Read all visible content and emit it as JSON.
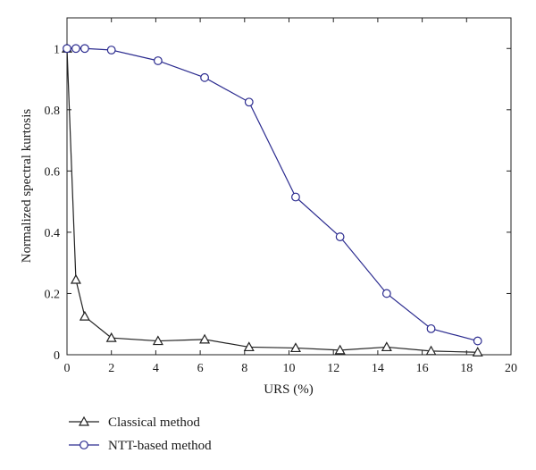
{
  "chart_data": {
    "type": "line",
    "title": "",
    "xlabel": "URS (%)",
    "ylabel": "Normalized spectral kurtosis",
    "xlim": [
      0,
      20
    ],
    "ylim": [
      0,
      1.1
    ],
    "x_ticks": [
      0,
      2,
      4,
      6,
      8,
      10,
      12,
      14,
      16,
      18,
      20
    ],
    "x_tick_labels": [
      "0",
      "2",
      "4",
      "6",
      "8",
      "10",
      "12",
      "14",
      "16",
      "18",
      "20"
    ],
    "y_ticks": [
      0,
      0.2,
      0.4,
      0.6,
      0.8,
      1
    ],
    "y_tick_labels": [
      "0",
      "0.2",
      "0.4",
      "0.6",
      "0.8",
      "1"
    ],
    "grid": false,
    "legend_position": "bottom-left, below plot",
    "series": [
      {
        "name": "Classical method",
        "color": "#222222",
        "marker": "triangle",
        "x": [
          0,
          0.4,
          0.8,
          2,
          4.1,
          6.2,
          8.2,
          10.3,
          12.3,
          14.4,
          16.4,
          18.5
        ],
        "y": [
          1.0,
          0.245,
          0.125,
          0.055,
          0.045,
          0.05,
          0.025,
          0.022,
          0.015,
          0.025,
          0.012,
          0.008
        ]
      },
      {
        "name": "NTT-based method",
        "color": "#2b2b8f",
        "marker": "circle",
        "x": [
          0,
          0.4,
          0.8,
          2,
          4.1,
          6.2,
          8.2,
          10.3,
          12.3,
          14.4,
          16.4,
          18.5
        ],
        "y": [
          1.0,
          1.0,
          1.0,
          0.995,
          0.96,
          0.905,
          0.825,
          0.515,
          0.385,
          0.2,
          0.085,
          0.045
        ]
      }
    ]
  }
}
